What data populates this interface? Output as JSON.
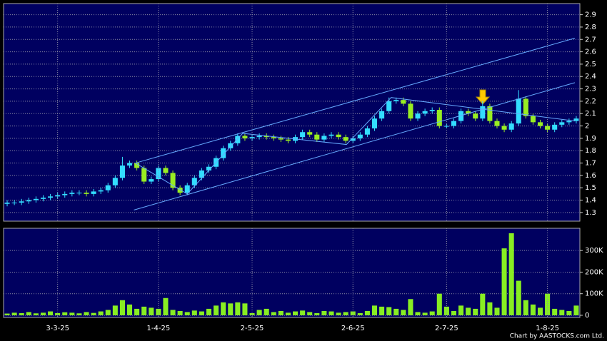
{
  "chart_data": [
    {
      "type": "candlestick",
      "open": [
        1.37,
        1.38,
        1.38,
        1.39,
        1.4,
        1.41,
        1.42,
        1.43,
        1.44,
        1.45,
        1.46,
        1.46,
        1.45,
        1.47,
        1.48,
        1.52,
        1.58,
        1.68,
        1.7,
        1.66,
        1.55,
        1.57,
        1.66,
        1.62,
        1.5,
        1.46,
        1.52,
        1.58,
        1.64,
        1.67,
        1.74,
        1.82,
        1.86,
        1.92,
        1.9,
        1.91,
        1.92,
        1.91,
        1.9,
        1.89,
        1.88,
        1.91,
        1.95,
        1.93,
        1.89,
        1.92,
        1.93,
        1.91,
        1.88,
        1.9,
        1.93,
        1.98,
        2.06,
        2.12,
        2.2,
        2.21,
        2.18,
        2.06,
        2.1,
        2.12,
        2.13,
        2.0,
        2.0,
        2.04,
        2.12,
        2.1,
        2.06,
        2.16,
        2.04,
        2.0,
        1.97,
        2.02,
        2.22,
        2.08,
        2.03,
        2.0,
        1.97,
        2.01,
        2.03,
        2.04
      ],
      "high": [
        1.4,
        1.4,
        1.41,
        1.42,
        1.43,
        1.44,
        1.45,
        1.46,
        1.47,
        1.48,
        1.48,
        1.48,
        1.49,
        1.5,
        1.54,
        1.6,
        1.75,
        1.72,
        1.72,
        1.68,
        1.59,
        1.68,
        1.68,
        1.64,
        1.52,
        1.54,
        1.6,
        1.66,
        1.69,
        1.76,
        1.84,
        1.88,
        1.94,
        1.94,
        1.93,
        1.94,
        1.94,
        1.93,
        1.92,
        1.91,
        1.93,
        1.97,
        1.97,
        1.95,
        1.94,
        1.95,
        1.95,
        1.93,
        1.92,
        1.95,
        2.0,
        2.08,
        2.14,
        2.23,
        2.23,
        2.23,
        2.2,
        2.12,
        2.14,
        2.15,
        2.15,
        2.02,
        2.06,
        2.14,
        2.14,
        2.12,
        2.2,
        2.18,
        2.06,
        2.02,
        2.04,
        2.29,
        2.24,
        2.1,
        2.05,
        2.02,
        2.03,
        2.05,
        2.06,
        2.08
      ],
      "low": [
        1.35,
        1.36,
        1.36,
        1.37,
        1.38,
        1.39,
        1.4,
        1.41,
        1.42,
        1.43,
        1.44,
        1.43,
        1.43,
        1.45,
        1.46,
        1.5,
        1.56,
        1.66,
        1.64,
        1.53,
        1.53,
        1.55,
        1.6,
        1.48,
        1.44,
        1.44,
        1.5,
        1.56,
        1.62,
        1.65,
        1.72,
        1.8,
        1.84,
        1.88,
        1.88,
        1.89,
        1.89,
        1.88,
        1.87,
        1.86,
        1.86,
        1.89,
        1.91,
        1.87,
        1.87,
        1.9,
        1.89,
        1.86,
        1.86,
        1.88,
        1.91,
        1.96,
        2.04,
        2.1,
        2.18,
        2.16,
        2.04,
        2.04,
        2.08,
        2.1,
        1.98,
        1.98,
        1.98,
        2.02,
        2.08,
        2.04,
        2.04,
        2.02,
        1.98,
        1.95,
        1.95,
        2.0,
        2.06,
        2.01,
        1.98,
        1.95,
        1.95,
        1.99,
        2.01,
        2.02
      ],
      "close": [
        1.38,
        1.38,
        1.39,
        1.4,
        1.41,
        1.42,
        1.43,
        1.44,
        1.45,
        1.46,
        1.46,
        1.45,
        1.47,
        1.48,
        1.52,
        1.58,
        1.68,
        1.7,
        1.66,
        1.55,
        1.57,
        1.66,
        1.62,
        1.5,
        1.46,
        1.52,
        1.58,
        1.64,
        1.67,
        1.74,
        1.82,
        1.86,
        1.92,
        1.9,
        1.91,
        1.92,
        1.91,
        1.9,
        1.89,
        1.88,
        1.91,
        1.95,
        1.93,
        1.89,
        1.92,
        1.93,
        1.91,
        1.88,
        1.9,
        1.93,
        1.98,
        2.06,
        2.12,
        2.2,
        2.21,
        2.18,
        2.06,
        2.1,
        2.12,
        2.13,
        2.0,
        2.0,
        2.04,
        2.12,
        2.1,
        2.06,
        2.16,
        2.04,
        2.0,
        1.97,
        2.02,
        2.22,
        2.08,
        2.03,
        2.0,
        1.97,
        2.01,
        2.03,
        2.04,
        2.06
      ],
      "up_color": "#33ddff",
      "down_color": "#99ee22",
      "ylim": [
        1.23,
        2.99
      ],
      "yticks": [
        1.3,
        1.4,
        1.5,
        1.6,
        1.7,
        1.8,
        1.9,
        2,
        2.1,
        2.2,
        2.3,
        2.4,
        2.5,
        2.6,
        2.7,
        2.8,
        2.9
      ],
      "grid": true,
      "trendline_color": "#66aaff",
      "trendlines": [
        {
          "x": [
            17.8,
            78.8
          ],
          "y": [
            1.7,
            2.71
          ]
        },
        {
          "x": [
            17.6,
            78.8
          ],
          "y": [
            1.32,
            2.35
          ]
        },
        {
          "x": [
            17.8,
            25.0,
            32.7,
            47.1,
            53.3,
            78.8
          ],
          "y": [
            1.7,
            1.45,
            1.94,
            1.85,
            2.23,
            2.04
          ]
        }
      ]
    },
    {
      "type": "bar",
      "categories": [
        null,
        null,
        null,
        null,
        null,
        null,
        null,
        "3-3-25",
        null,
        null,
        null,
        null,
        null,
        null,
        null,
        null,
        null,
        null,
        null,
        null,
        null,
        "1-4-25",
        null,
        null,
        null,
        null,
        null,
        null,
        null,
        null,
        null,
        null,
        null,
        null,
        "2-5-25",
        null,
        null,
        null,
        null,
        null,
        null,
        null,
        null,
        null,
        null,
        null,
        null,
        null,
        "2-6-25",
        null,
        null,
        null,
        null,
        null,
        null,
        null,
        null,
        null,
        null,
        null,
        null,
        "2-7-25",
        null,
        null,
        null,
        null,
        null,
        null,
        null,
        null,
        null,
        null,
        null,
        null,
        null,
        "1-8-25",
        null,
        null,
        null,
        null
      ],
      "values": [
        8000,
        12000,
        10000,
        15000,
        9000,
        12000,
        18000,
        10000,
        14000,
        12000,
        9000,
        15000,
        11000,
        18000,
        25000,
        45000,
        70000,
        50000,
        30000,
        40000,
        35000,
        30000,
        80000,
        25000,
        20000,
        15000,
        22000,
        18000,
        30000,
        45000,
        60000,
        55000,
        60000,
        55000,
        10000,
        25000,
        30000,
        15000,
        20000,
        12000,
        18000,
        22000,
        15000,
        10000,
        20000,
        18000,
        12000,
        15000,
        18000,
        10000,
        20000,
        45000,
        40000,
        38000,
        30000,
        25000,
        75000,
        15000,
        12000,
        18000,
        100000,
        40000,
        20000,
        45000,
        35000,
        30000,
        100000,
        60000,
        35000,
        310000,
        380000,
        160000,
        70000,
        50000,
        35000,
        100000,
        30000,
        25000,
        20000,
        45000
      ],
      "color": "#88ee22",
      "ylim": [
        -10000,
        403000
      ],
      "yticks": [
        0,
        {
          "value": 100000,
          "label": "100K"
        },
        {
          "value": 200000,
          "label": "200K"
        },
        {
          "value": 300000,
          "label": "300K"
        }
      ],
      "grid": true
    }
  ],
  "credit": "Chart by AASTOCKS.com Ltd."
}
